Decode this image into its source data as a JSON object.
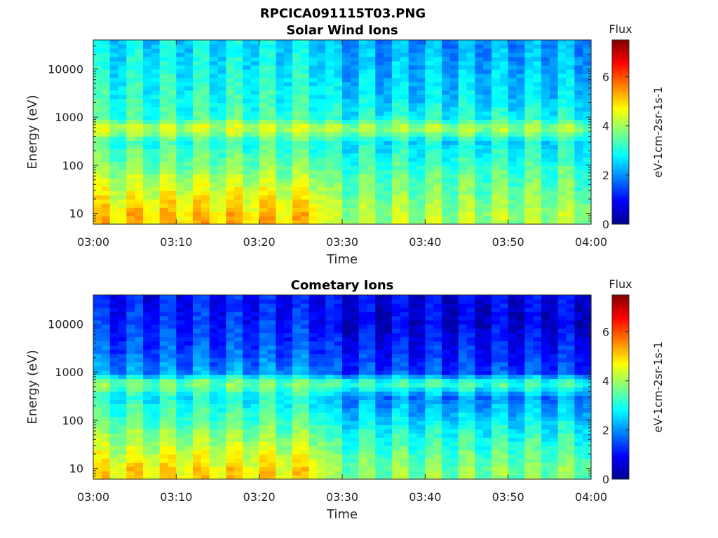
{
  "figure_title": "RPCICA091115T03.PNG",
  "chart_data": [
    {
      "type": "heatmap",
      "title": "Solar Wind Ions",
      "xlabel": "Time",
      "ylabel": "Energy (eV)",
      "x_ticks": [
        "03:00",
        "03:10",
        "03:20",
        "03:30",
        "03:40",
        "03:50",
        "04:00"
      ],
      "x_range": [
        "03:00",
        "04:00"
      ],
      "y_scale": "log",
      "y_ticks": [
        10,
        100,
        1000,
        10000
      ],
      "y_tick_labels": [
        "10",
        "100",
        "1000",
        "10000"
      ],
      "y_range": [
        6,
        40000
      ],
      "colorbar": {
        "title": "Flux",
        "label": "eV-1cm-2sr-1s-1",
        "range": [
          0,
          7.5
        ],
        "ticks": [
          0,
          2,
          4,
          6
        ],
        "colormap": "jet"
      },
      "regime_change_time": "03:28",
      "profile_before": [
        {
          "energy": 10,
          "flux": 4.9
        },
        {
          "energy": 30,
          "flux": 4.3
        },
        {
          "energy": 100,
          "flux": 3.6
        },
        {
          "energy": 300,
          "flux": 3.0
        },
        {
          "energy": 600,
          "flux": 4.3
        },
        {
          "energy": 1000,
          "flux": 3.1
        },
        {
          "energy": 3000,
          "flux": 2.9
        },
        {
          "energy": 10000,
          "flux": 2.7
        },
        {
          "energy": 30000,
          "flux": 2.5
        }
      ],
      "profile_after": [
        {
          "energy": 10,
          "flux": 3.9
        },
        {
          "energy": 30,
          "flux": 3.5
        },
        {
          "energy": 100,
          "flux": 3.1
        },
        {
          "energy": 300,
          "flux": 2.6
        },
        {
          "energy": 600,
          "flux": 4.0
        },
        {
          "energy": 1000,
          "flux": 2.8
        },
        {
          "energy": 3000,
          "flux": 2.4
        },
        {
          "energy": 10000,
          "flux": 2.2
        },
        {
          "energy": 30000,
          "flux": 2.0
        }
      ]
    },
    {
      "type": "heatmap",
      "title": "Cometary Ions",
      "xlabel": "Time",
      "ylabel": "Energy (eV)",
      "x_ticks": [
        "03:00",
        "03:10",
        "03:20",
        "03:30",
        "03:40",
        "03:50",
        "04:00"
      ],
      "x_range": [
        "03:00",
        "04:00"
      ],
      "y_scale": "log",
      "y_ticks": [
        10,
        100,
        1000,
        10000
      ],
      "y_tick_labels": [
        "10",
        "100",
        "1000",
        "10000"
      ],
      "y_range": [
        6,
        40000
      ],
      "colorbar": {
        "title": "Flux",
        "label": "eV-1cm-2sr-1s-1",
        "range": [
          0,
          7.5
        ],
        "ticks": [
          0,
          2,
          4,
          6
        ],
        "colormap": "jet"
      },
      "regime_change_time": "03:28",
      "profile_before": [
        {
          "energy": 10,
          "flux": 4.7
        },
        {
          "energy": 30,
          "flux": 4.0
        },
        {
          "energy": 100,
          "flux": 3.3
        },
        {
          "energy": 300,
          "flux": 2.7
        },
        {
          "energy": 600,
          "flux": 3.7
        },
        {
          "energy": 1000,
          "flux": 1.9
        },
        {
          "energy": 3000,
          "flux": 1.4
        },
        {
          "energy": 10000,
          "flux": 1.1
        },
        {
          "energy": 30000,
          "flux": 0.9
        }
      ],
      "profile_after": [
        {
          "energy": 10,
          "flux": 3.6
        },
        {
          "energy": 30,
          "flux": 3.1
        },
        {
          "energy": 100,
          "flux": 2.5
        },
        {
          "energy": 300,
          "flux": 1.8
        },
        {
          "energy": 600,
          "flux": 3.3
        },
        {
          "energy": 1000,
          "flux": 1.3
        },
        {
          "energy": 3000,
          "flux": 1.0
        },
        {
          "energy": 10000,
          "flux": 0.6
        },
        {
          "energy": 30000,
          "flux": 0.7
        }
      ]
    }
  ]
}
